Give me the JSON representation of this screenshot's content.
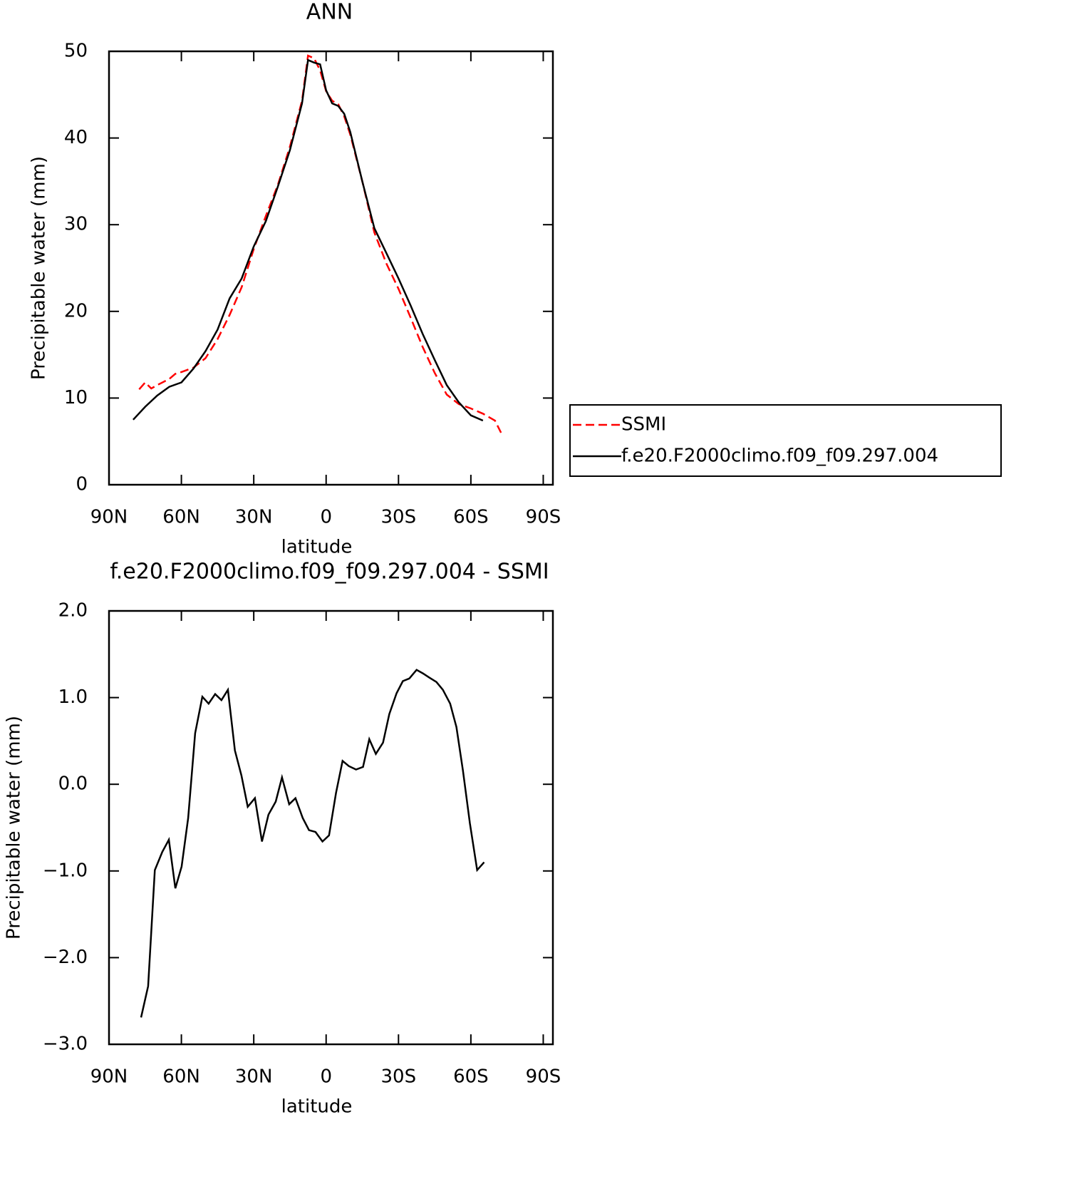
{
  "chart_data": [
    {
      "type": "line",
      "title": "ANN",
      "xlabel": "latitude",
      "ylabel": "Precipitable water (mm)",
      "xlim": [
        90,
        -94
      ],
      "xticks": [
        {
          "value": 90,
          "label": "90N"
        },
        {
          "value": 60,
          "label": "60N"
        },
        {
          "value": 30,
          "label": "30N"
        },
        0,
        {
          "value": -30,
          "label": "30S"
        },
        {
          "value": -60,
          "label": "60S"
        },
        {
          "value": -90,
          "label": "90S"
        }
      ],
      "ylim": [
        0,
        50
      ],
      "yticks": [
        0,
        10,
        20,
        30,
        40,
        50
      ],
      "legend": "outside-right",
      "series": [
        {
          "name": "SSMI",
          "color": "#ff0000",
          "linestyle": "dashed",
          "x": [
            77.5,
            75,
            72.5,
            70,
            65,
            62.5,
            60,
            55,
            50,
            45,
            40,
            35,
            30,
            25,
            20,
            15,
            10,
            7.5,
            5,
            2.5,
            0,
            -2.5,
            -5,
            -7.5,
            -10,
            -15,
            -20,
            -25,
            -30,
            -35,
            -40,
            -45,
            -50,
            -55,
            -60,
            -65,
            -70,
            -72.5
          ],
          "values": [
            11.0,
            11.8,
            11.1,
            11.5,
            12.2,
            12.8,
            13.0,
            13.5,
            14.6,
            16.8,
            19.6,
            22.8,
            27.2,
            31.0,
            34.6,
            39.0,
            44.3,
            49.5,
            49.2,
            47.8,
            45.4,
            44.3,
            43.9,
            42.5,
            40.4,
            35.0,
            29.1,
            25.5,
            22.6,
            19.3,
            15.9,
            12.9,
            10.4,
            9.3,
            8.8,
            8.2,
            7.4,
            6.0
          ]
        },
        {
          "name": "f.e20.F2000climo.f09_f09.297.004",
          "color": "#000000",
          "linestyle": "solid",
          "x": [
            80,
            75,
            70,
            65,
            60,
            55,
            50,
            45,
            40,
            35,
            30,
            25,
            20,
            15,
            10,
            7.5,
            5,
            2.5,
            0,
            -2.5,
            -5,
            -7.5,
            -10,
            -15,
            -20,
            -25,
            -30,
            -35,
            -40,
            -45,
            -50,
            -55,
            -60,
            -65
          ],
          "values": [
            7.5,
            9.0,
            10.3,
            11.3,
            11.8,
            13.4,
            15.4,
            17.9,
            21.5,
            23.8,
            27.5,
            30.4,
            34.4,
            38.6,
            44.0,
            49.0,
            48.7,
            48.5,
            45.5,
            44.0,
            43.7,
            42.8,
            40.7,
            35.0,
            29.6,
            26.7,
            23.8,
            20.7,
            17.4,
            14.4,
            11.5,
            9.5,
            8.0,
            7.4
          ]
        }
      ]
    },
    {
      "type": "line",
      "title": "f.e20.F2000climo.f09_f09.297.004 - SSMI",
      "xlabel": "latitude",
      "ylabel": "Precipitable water (mm)",
      "xlim": [
        90,
        -94
      ],
      "xticks": [
        {
          "value": 90,
          "label": "90N"
        },
        {
          "value": 60,
          "label": "60N"
        },
        {
          "value": 30,
          "label": "30N"
        },
        0,
        {
          "value": -30,
          "label": "30S"
        },
        {
          "value": -60,
          "label": "60S"
        },
        {
          "value": -90,
          "label": "90S"
        }
      ],
      "ylim": [
        -3,
        2
      ],
      "yticks": [
        {
          "value": 2,
          "label": "2.0"
        },
        {
          "value": 1,
          "label": "1.0"
        },
        {
          "value": 0,
          "label": "0.0"
        },
        {
          "value": -1,
          "label": "−1.0"
        },
        {
          "value": -2,
          "label": "−2.0"
        },
        {
          "value": -3,
          "label": "−3.0"
        }
      ],
      "series": [
        {
          "color": "#000000",
          "linestyle": "solid",
          "x": [
            76.7,
            73.8,
            71.0,
            67.9,
            65.2,
            62.5,
            59.9,
            57.2,
            54.3,
            51.3,
            48.7,
            46.0,
            43.4,
            40.7,
            37.8,
            35.1,
            32.5,
            29.5,
            26.6,
            23.9,
            20.9,
            18.3,
            15.3,
            12.7,
            9.7,
            7.1,
            4.4,
            1.5,
            -1.2,
            -4.1,
            -6.8,
            -9.4,
            -12.4,
            -15.3,
            -17.9,
            -20.6,
            -23.6,
            -26.2,
            -29.2,
            -31.8,
            -34.5,
            -37.5,
            -40.1,
            -42.8,
            -45.7,
            -48.4,
            -51.4,
            -54.0,
            -56.7,
            -59.6,
            -62.6,
            -65.5
          ],
          "values": [
            -2.69,
            -2.33,
            -0.99,
            -0.78,
            -0.64,
            -1.2,
            -0.95,
            -0.39,
            0.59,
            1.01,
            0.93,
            1.04,
            0.97,
            1.09,
            0.39,
            0.1,
            -0.26,
            -0.16,
            -0.66,
            -0.35,
            -0.2,
            0.08,
            -0.23,
            -0.16,
            -0.39,
            -0.53,
            -0.55,
            -0.66,
            -0.59,
            -0.1,
            0.27,
            0.21,
            0.17,
            0.2,
            0.52,
            0.35,
            0.48,
            0.81,
            1.05,
            1.19,
            1.22,
            1.32,
            1.28,
            1.23,
            1.18,
            1.09,
            0.93,
            0.66,
            0.16,
            -0.45,
            -0.99,
            -0.9
          ]
        }
      ]
    }
  ]
}
